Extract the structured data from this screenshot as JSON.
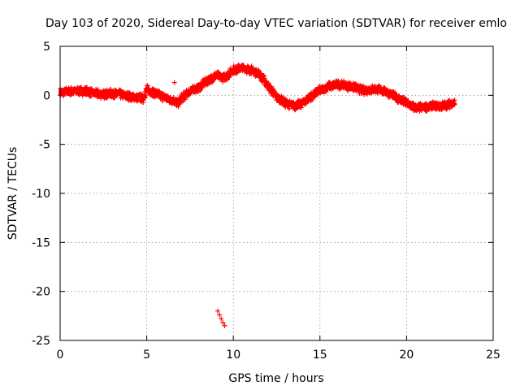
{
  "chart_data": {
    "type": "scatter",
    "title": "Day 103 of 2020, Sidereal Day-to-day VTEC variation (SDTVAR) for receiver emlo",
    "xlabel": "GPS time / hours",
    "ylabel": "SDTVAR / TECUs",
    "xlim": [
      0,
      25
    ],
    "ylim": [
      -25,
      5
    ],
    "xticks": [
      0,
      5,
      10,
      15,
      20,
      25
    ],
    "yticks": [
      5,
      0,
      -5,
      -10,
      -15,
      -20,
      -25
    ],
    "grid": true,
    "marker": "+",
    "color": "#ff0000",
    "series": [
      {
        "name": "SDTVAR",
        "trend": [
          [
            0.0,
            0.3
          ],
          [
            0.5,
            0.4
          ],
          [
            1.0,
            0.45
          ],
          [
            1.5,
            0.4
          ],
          [
            2.0,
            0.2
          ],
          [
            2.5,
            0.1
          ],
          [
            3.0,
            0.2
          ],
          [
            3.5,
            0.1
          ],
          [
            4.0,
            -0.1
          ],
          [
            4.5,
            -0.2
          ],
          [
            4.8,
            -0.3
          ],
          [
            5.0,
            0.6
          ],
          [
            5.5,
            0.2
          ],
          [
            6.0,
            -0.2
          ],
          [
            6.5,
            -0.5
          ],
          [
            6.8,
            -0.8
          ],
          [
            7.0,
            -0.3
          ],
          [
            7.5,
            0.4
          ],
          [
            8.0,
            0.8
          ],
          [
            8.5,
            1.5
          ],
          [
            9.0,
            2.0
          ],
          [
            9.5,
            1.8
          ],
          [
            10.0,
            2.6
          ],
          [
            10.5,
            2.8
          ],
          [
            11.0,
            2.6
          ],
          [
            11.5,
            2.2
          ],
          [
            12.0,
            1.0
          ],
          [
            12.5,
            -0.2
          ],
          [
            13.0,
            -0.8
          ],
          [
            13.5,
            -1.1
          ],
          [
            14.0,
            -0.8
          ],
          [
            14.5,
            -0.1
          ],
          [
            15.0,
            0.5
          ],
          [
            15.5,
            0.9
          ],
          [
            16.0,
            1.1
          ],
          [
            16.5,
            1.0
          ],
          [
            17.0,
            0.8
          ],
          [
            17.5,
            0.5
          ],
          [
            18.0,
            0.6
          ],
          [
            18.5,
            0.6
          ],
          [
            19.0,
            0.2
          ],
          [
            19.5,
            -0.3
          ],
          [
            20.0,
            -0.8
          ],
          [
            20.5,
            -1.3
          ],
          [
            21.0,
            -1.2
          ],
          [
            21.5,
            -1.1
          ],
          [
            22.0,
            -1.1
          ],
          [
            22.5,
            -0.9
          ],
          [
            22.8,
            -0.8
          ]
        ],
        "outliers": [
          [
            6.6,
            1.3
          ],
          [
            9.1,
            -22.0
          ],
          [
            9.2,
            -22.4
          ],
          [
            9.3,
            -22.8
          ],
          [
            9.4,
            -23.2
          ],
          [
            9.5,
            -23.5
          ]
        ]
      }
    ]
  }
}
